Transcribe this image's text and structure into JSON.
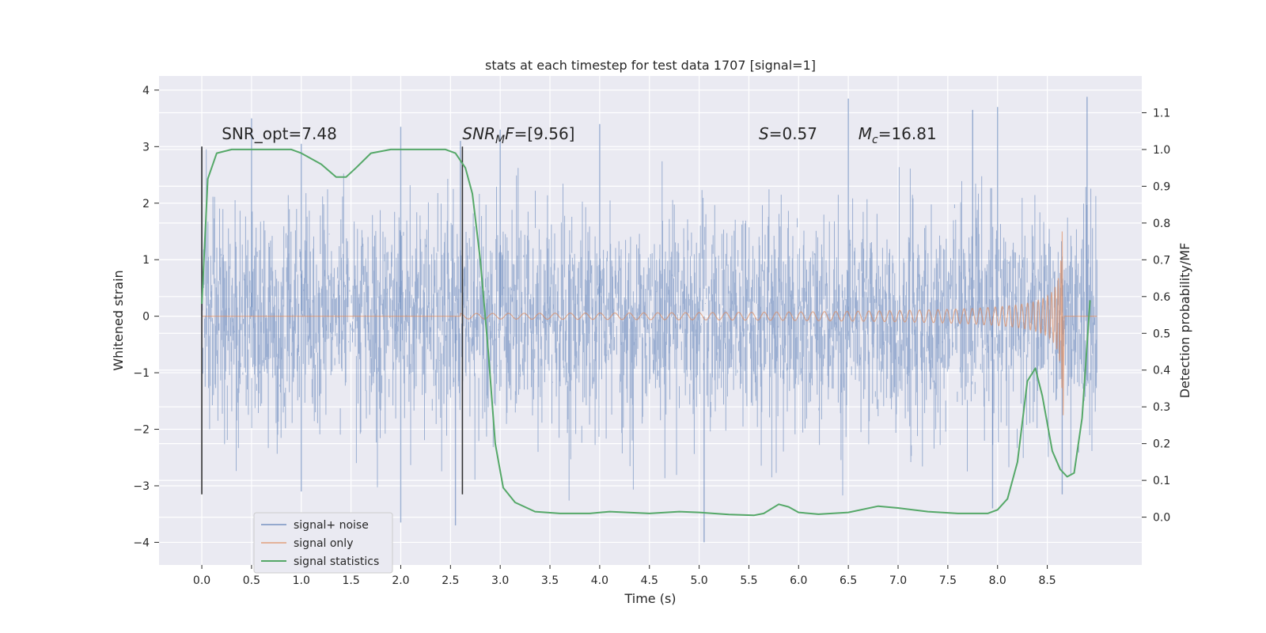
{
  "chart_data": {
    "type": "line",
    "title": "stats at each timestep for test data 1707 [signal=1]",
    "xlabel": "Time (s)",
    "ylabel": "Whitened strain",
    "y2label": "Detection probability/MF",
    "xlim": [
      -0.43,
      9.45
    ],
    "ylim": [
      -4.4,
      4.25
    ],
    "y2lim": [
      -0.13,
      1.2
    ],
    "xticks": [
      0.0,
      0.5,
      1.0,
      1.5,
      2.0,
      2.5,
      3.0,
      3.5,
      4.0,
      4.5,
      5.0,
      5.5,
      6.0,
      6.5,
      7.0,
      7.5,
      8.0,
      8.5
    ],
    "xtick_labels": [
      "0.0",
      "0.5",
      "1.0",
      "1.5",
      "2.0",
      "2.5",
      "3.0",
      "3.5",
      "4.0",
      "4.5",
      "5.0",
      "5.5",
      "6.0",
      "6.5",
      "7.0",
      "7.5",
      "8.0",
      "8.5"
    ],
    "yticks": [
      -4,
      -3,
      -2,
      -1,
      0,
      1,
      2,
      3,
      4
    ],
    "ytick_labels": [
      "−4",
      "−3",
      "−2",
      "−1",
      "0",
      "1",
      "2",
      "3",
      "4"
    ],
    "y2ticks": [
      0.0,
      0.1,
      0.2,
      0.3,
      0.4,
      0.5,
      0.6,
      0.7,
      0.8,
      0.9,
      1.0,
      1.1
    ],
    "y2tick_labels": [
      "0.0",
      "0.1",
      "0.2",
      "0.3",
      "0.4",
      "0.5",
      "0.6",
      "0.7",
      "0.8",
      "0.9",
      "1.0",
      "1.1"
    ],
    "grid": true,
    "legend_position": "lower-left",
    "colors": {
      "background": "#eaeaf2",
      "grid": "#ffffff",
      "noise": "#4c72b0",
      "signal": "#dd8452",
      "stats": "#55a868",
      "vline": "#333333"
    },
    "series": [
      {
        "name": "signal+ noise",
        "style": "dense-noise",
        "x_range": [
          0.0,
          9.0
        ],
        "envelope_points": [
          {
            "x": 0.0,
            "y": 3.0
          },
          {
            "x": 0.5,
            "y": 3.5
          },
          {
            "x": 1.0,
            "y": 3.05
          },
          {
            "x": 2.0,
            "y": 3.35
          },
          {
            "x": 2.6,
            "y": 3.1
          },
          {
            "x": 3.0,
            "y": 3.3
          },
          {
            "x": 4.0,
            "y": 3.4
          },
          {
            "x": 6.5,
            "y": 3.85
          },
          {
            "x": 7.75,
            "y": 3.65
          },
          {
            "x": 8.0,
            "y": 3.7
          },
          {
            "x": 8.9,
            "y": 3.88
          },
          {
            "x": 1.0,
            "y": -3.1
          },
          {
            "x": 2.0,
            "y": -3.65
          },
          {
            "x": 2.55,
            "y": -3.7
          },
          {
            "x": 5.05,
            "y": -4.0
          },
          {
            "x": 7.95,
            "y": -3.4
          },
          {
            "x": 8.65,
            "y": -3.15
          }
        ]
      },
      {
        "name": "signal only",
        "style": "chirp",
        "start": 2.6,
        "merger": 8.65,
        "peak_amplitude": 1.5
      },
      {
        "name": "signal statistics",
        "style": "line",
        "points": [
          [
            0.0,
            0.58
          ],
          [
            0.06,
            0.92
          ],
          [
            0.15,
            0.99
          ],
          [
            0.3,
            1.0
          ],
          [
            0.6,
            1.0
          ],
          [
            0.9,
            1.0
          ],
          [
            1.0,
            0.99
          ],
          [
            1.2,
            0.96
          ],
          [
            1.35,
            0.925
          ],
          [
            1.45,
            0.925
          ],
          [
            1.55,
            0.95
          ],
          [
            1.7,
            0.99
          ],
          [
            1.9,
            1.0
          ],
          [
            2.2,
            1.0
          ],
          [
            2.45,
            1.0
          ],
          [
            2.55,
            0.99
          ],
          [
            2.65,
            0.95
          ],
          [
            2.72,
            0.88
          ],
          [
            2.8,
            0.7
          ],
          [
            2.88,
            0.45
          ],
          [
            2.95,
            0.2
          ],
          [
            3.03,
            0.08
          ],
          [
            3.15,
            0.04
          ],
          [
            3.35,
            0.015
          ],
          [
            3.6,
            0.01
          ],
          [
            3.9,
            0.01
          ],
          [
            4.1,
            0.015
          ],
          [
            4.5,
            0.01
          ],
          [
            4.8,
            0.015
          ],
          [
            5.0,
            0.013
          ],
          [
            5.3,
            0.007
          ],
          [
            5.55,
            0.005
          ],
          [
            5.65,
            0.01
          ],
          [
            5.8,
            0.035
          ],
          [
            5.9,
            0.028
          ],
          [
            6.0,
            0.013
          ],
          [
            6.2,
            0.008
          ],
          [
            6.5,
            0.013
          ],
          [
            6.8,
            0.03
          ],
          [
            7.0,
            0.025
          ],
          [
            7.3,
            0.015
          ],
          [
            7.6,
            0.01
          ],
          [
            7.9,
            0.01
          ],
          [
            8.0,
            0.02
          ],
          [
            8.1,
            0.05
          ],
          [
            8.2,
            0.15
          ],
          [
            8.3,
            0.37
          ],
          [
            8.38,
            0.405
          ],
          [
            8.45,
            0.33
          ],
          [
            8.55,
            0.18
          ],
          [
            8.63,
            0.13
          ],
          [
            8.7,
            0.11
          ],
          [
            8.77,
            0.12
          ],
          [
            8.85,
            0.27
          ],
          [
            8.93,
            0.59
          ]
        ]
      }
    ],
    "vlines": [
      {
        "x": 0.0,
        "ymin": -3.15,
        "ymax": 3.0
      },
      {
        "x": 2.62,
        "ymin": -3.15,
        "ymax": 3.0
      }
    ],
    "annotations": [
      {
        "text": "SNR_opt=7.48",
        "x": 0.2,
        "y": 3.1,
        "style": "plain"
      },
      {
        "text_main": "SNR",
        "text_sub": "M",
        "text_rest": "F=[9.56]",
        "x": 2.62,
        "y": 3.1,
        "style": "math"
      },
      {
        "text_main": "S",
        "text_rest": "=0.57",
        "x": 5.6,
        "y": 3.1,
        "style": "math-italic"
      },
      {
        "text_main": "M",
        "text_sub": "c",
        "text_rest": "=16.81",
        "x": 6.6,
        "y": 3.1,
        "style": "math"
      }
    ]
  }
}
